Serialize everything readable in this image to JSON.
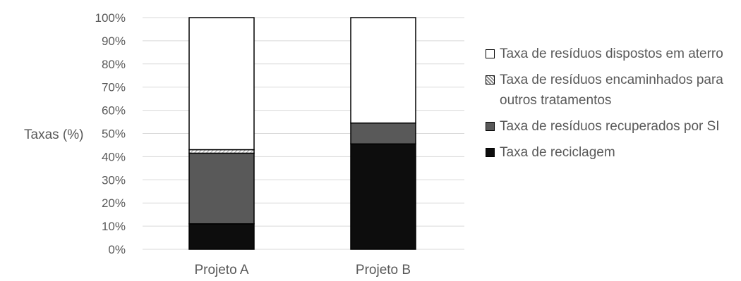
{
  "chart_data": {
    "type": "bar",
    "stacked": true,
    "categories": [
      "Projeto A",
      "Projeto B"
    ],
    "ylabel": "Taxas (%)",
    "ylim": [
      0,
      100
    ],
    "yticks": [
      "0%",
      "10%",
      "20%",
      "30%",
      "40%",
      "50%",
      "60%",
      "70%",
      "80%",
      "90%",
      "100%"
    ],
    "grid": true,
    "legend_position": "right",
    "series": [
      {
        "name": "Taxa de reciclagem",
        "values": [
          11,
          45.5
        ],
        "color": "#0d0d0d",
        "pattern": "solid"
      },
      {
        "name": "Taxa de resíduos recuperados por SI",
        "values": [
          30.5,
          9
        ],
        "color": "#595959",
        "pattern": "solid"
      },
      {
        "name": "Taxa de resíduos encaminhados para outros tratamentos",
        "values": [
          1.5,
          0
        ],
        "color": "#ffffff",
        "pattern": "hatch"
      },
      {
        "name": "Taxa de resíduos dispostos em aterro",
        "values": [
          57,
          45.5
        ],
        "color": "#ffffff",
        "pattern": "solid"
      }
    ]
  }
}
